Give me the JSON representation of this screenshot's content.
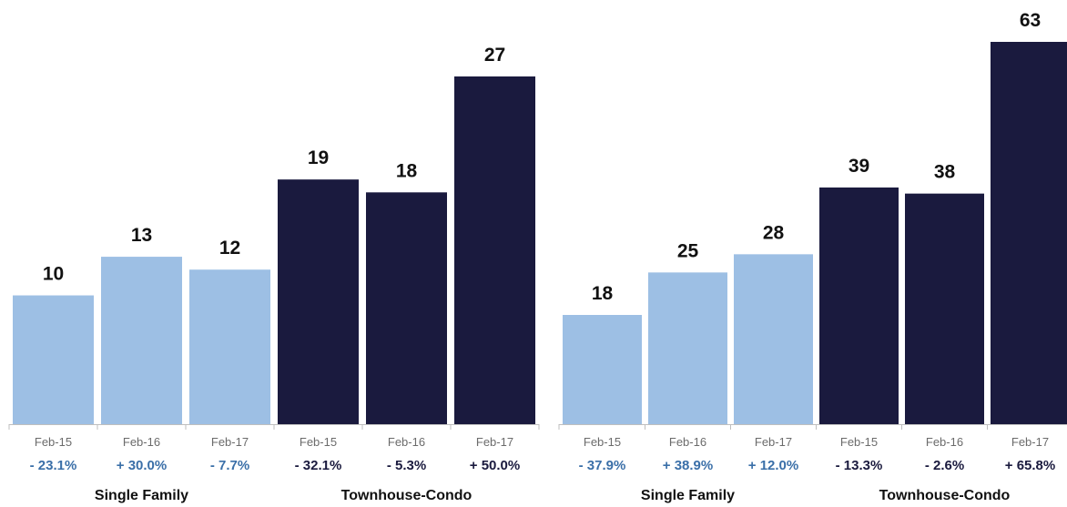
{
  "colors": {
    "single_family": "#9dbfe4",
    "townhouse_condo": "#1a1a3e",
    "pct_single_family": "#3a6fa8",
    "pct_townhouse_condo": "#1a1a3e"
  },
  "chart_data": [
    {
      "type": "bar",
      "title": "",
      "xlabel": "",
      "ylabel": "",
      "ylim": [
        0,
        27
      ],
      "grid": false,
      "groups": [
        {
          "name": "Single Family",
          "color_key": "single_family",
          "bars": [
            {
              "category": "Feb-15",
              "value": 10,
              "change": "- 23.1%"
            },
            {
              "category": "Feb-16",
              "value": 13,
              "change": "+ 30.0%"
            },
            {
              "category": "Feb-17",
              "value": 12,
              "change": "- 7.7%"
            }
          ]
        },
        {
          "name": "Townhouse-Condo",
          "color_key": "townhouse_condo",
          "bars": [
            {
              "category": "Feb-15",
              "value": 19,
              "change": "- 32.1%"
            },
            {
              "category": "Feb-16",
              "value": 18,
              "change": "- 5.3%"
            },
            {
              "category": "Feb-17",
              "value": 27,
              "change": "+ 50.0%"
            }
          ]
        }
      ]
    },
    {
      "type": "bar",
      "title": "",
      "xlabel": "",
      "ylabel": "",
      "ylim": [
        0,
        63
      ],
      "grid": false,
      "groups": [
        {
          "name": "Single Family",
          "color_key": "single_family",
          "bars": [
            {
              "category": "Feb-15",
              "value": 18,
              "change": "- 37.9%"
            },
            {
              "category": "Feb-16",
              "value": 25,
              "change": "+ 38.9%"
            },
            {
              "category": "Feb-17",
              "value": 28,
              "change": "+ 12.0%"
            }
          ]
        },
        {
          "name": "Townhouse-Condo",
          "color_key": "townhouse_condo",
          "bars": [
            {
              "category": "Feb-15",
              "value": 39,
              "change": "- 13.3%"
            },
            {
              "category": "Feb-16",
              "value": 38,
              "change": "- 2.6%"
            },
            {
              "category": "Feb-17",
              "value": 63,
              "change": "+ 65.8%"
            }
          ]
        }
      ]
    }
  ]
}
